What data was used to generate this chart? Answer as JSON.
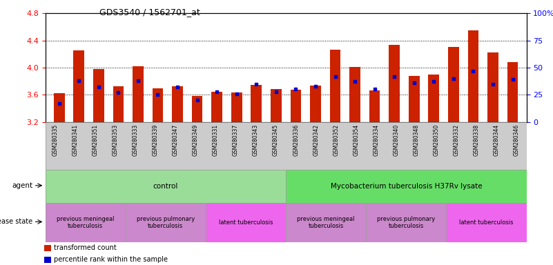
{
  "title": "GDS3540 / 1562701_at",
  "samples": [
    "GSM280335",
    "GSM280341",
    "GSM280351",
    "GSM280353",
    "GSM280333",
    "GSM280339",
    "GSM280347",
    "GSM280349",
    "GSM280331",
    "GSM280337",
    "GSM280343",
    "GSM280345",
    "GSM280336",
    "GSM280342",
    "GSM280352",
    "GSM280354",
    "GSM280334",
    "GSM280340",
    "GSM280348",
    "GSM280350",
    "GSM280332",
    "GSM280338",
    "GSM280344",
    "GSM280346"
  ],
  "transformed_count": [
    3.62,
    4.25,
    3.98,
    3.72,
    4.02,
    3.69,
    3.72,
    3.58,
    3.64,
    3.63,
    3.75,
    3.68,
    3.67,
    3.73,
    4.26,
    4.01,
    3.66,
    4.33,
    3.88,
    3.9,
    4.3,
    4.55,
    4.22,
    4.08
  ],
  "percentile_rank": [
    17,
    38,
    32,
    27,
    38,
    25,
    32,
    20,
    28,
    26,
    35,
    28,
    30,
    33,
    42,
    37,
    30,
    42,
    36,
    37,
    40,
    47,
    35,
    39
  ],
  "ylim_left": [
    3.2,
    4.8
  ],
  "ylim_right": [
    0,
    100
  ],
  "yticks_left": [
    3.2,
    3.6,
    4.0,
    4.4,
    4.8
  ],
  "yticks_right": [
    0,
    25,
    50,
    75,
    100
  ],
  "bar_color": "#cc2200",
  "dot_color": "#0000cc",
  "gridlines": [
    3.6,
    4.0,
    4.4
  ],
  "bar_bottom": 3.2,
  "bar_width": 0.55,
  "agent_groups": [
    {
      "label": "control",
      "start": 0,
      "end": 11,
      "color": "#99dd99"
    },
    {
      "label": "Mycobacterium tuberculosis H37Rv lysate",
      "start": 12,
      "end": 23,
      "color": "#66dd66"
    }
  ],
  "disease_groups": [
    {
      "label": "previous meningeal\ntuberculosis",
      "start": 0,
      "end": 3,
      "color": "#cc88cc"
    },
    {
      "label": "previous pulmonary\ntuberculosis",
      "start": 4,
      "end": 7,
      "color": "#cc88cc"
    },
    {
      "label": "latent tuberculosis",
      "start": 8,
      "end": 11,
      "color": "#ee66ee"
    },
    {
      "label": "previous meningeal\ntuberculosis",
      "start": 12,
      "end": 15,
      "color": "#cc88cc"
    },
    {
      "label": "previous pulmonary\ntuberculosis",
      "start": 16,
      "end": 19,
      "color": "#cc88cc"
    },
    {
      "label": "latent tuberculosis",
      "start": 20,
      "end": 23,
      "color": "#ee66ee"
    }
  ]
}
